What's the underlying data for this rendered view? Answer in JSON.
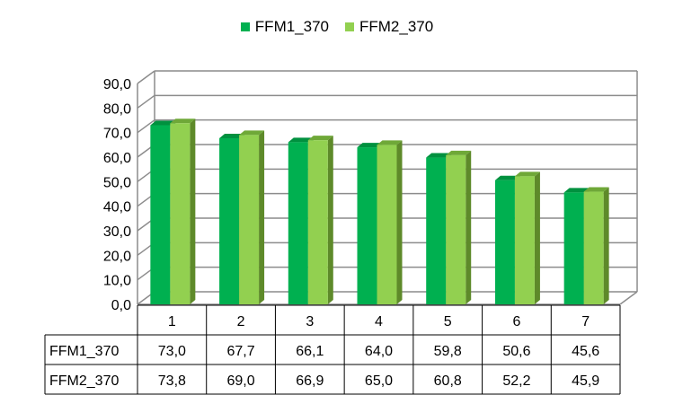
{
  "chart_data": {
    "type": "bar",
    "categories": [
      "1",
      "2",
      "3",
      "4",
      "5",
      "6",
      "7"
    ],
    "series": [
      {
        "name": "FFM1_370",
        "values": [
          73.0,
          67.7,
          66.1,
          64.0,
          59.8,
          50.6,
          45.6
        ],
        "color": "#00b050",
        "side_color": "#007a37",
        "top_color": "#00913f"
      },
      {
        "name": "FFM2_370",
        "values": [
          73.8,
          69.0,
          66.9,
          65.0,
          60.8,
          52.2,
          45.9
        ],
        "color": "#92d050",
        "side_color": "#5e8a2a",
        "top_color": "#6fa838"
      }
    ],
    "value_labels": [
      [
        "73,0",
        "67,7",
        "66,1",
        "64,0",
        "59,8",
        "50,6",
        "45,6"
      ],
      [
        "73,8",
        "69,0",
        "66,9",
        "65,0",
        "60,8",
        "52,2",
        "45,9"
      ]
    ],
    "y_ticks": [
      "0,0",
      "10,0",
      "20,0",
      "30,0",
      "40,0",
      "50,0",
      "60,0",
      "70,0",
      "80,0",
      "90,0"
    ],
    "ylim": [
      0,
      90
    ],
    "y_step": 10,
    "title": "",
    "xlabel": "",
    "ylabel": "",
    "grid": true,
    "legend_position": "top",
    "data_table": true,
    "colors": {
      "grid": "#8c8c8c",
      "wall": "#d9d9d9"
    }
  }
}
